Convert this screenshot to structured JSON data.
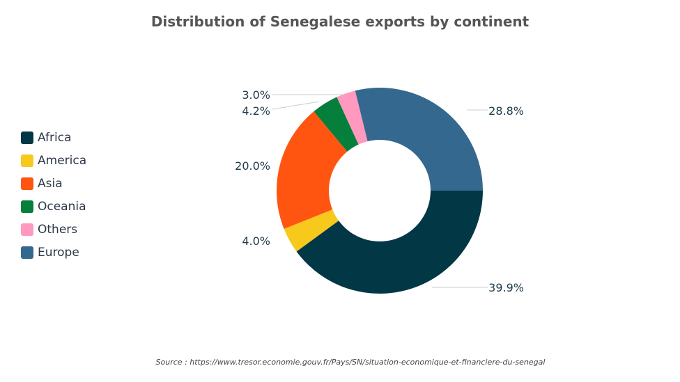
{
  "chart_data": {
    "type": "pie",
    "variant": "donut",
    "title": "Distribution of Senegalese exports by continent",
    "categories": [
      "Africa",
      "America",
      "Asia",
      "Oceania",
      "Others",
      "Europe"
    ],
    "values": [
      39.9,
      4.0,
      20.0,
      4.2,
      3.0,
      28.8
    ],
    "labels": [
      "39.9%",
      "4.0%",
      "20.0%",
      "4.2%",
      "3.0%",
      "28.8%"
    ],
    "colors": [
      "#023845",
      "#f7c91c",
      "#ff5511",
      "#067e3c",
      "#ff99bf",
      "#35688f"
    ],
    "legend_position": "left",
    "source": "Source : https://www.tresor.economie.gouv.fr/Pays/SN/situation-economique-et-financiere-du-senegal"
  }
}
